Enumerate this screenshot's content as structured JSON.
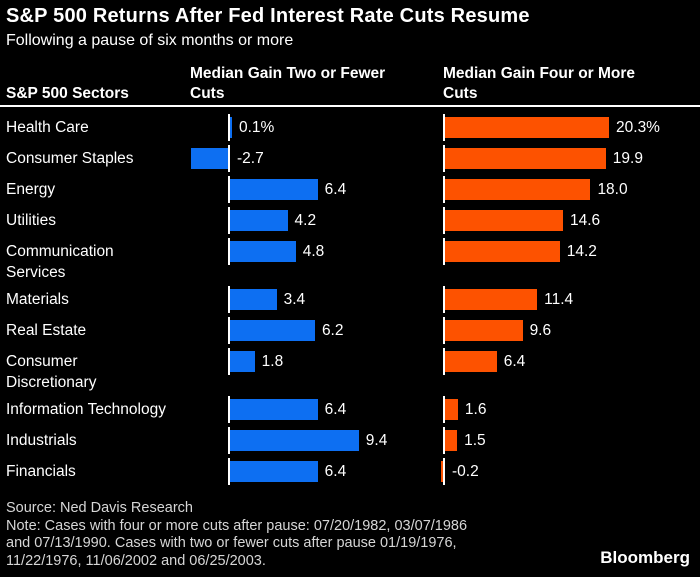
{
  "colors": {
    "background": "#000000",
    "text": "#ffffff",
    "footer_text": "#d6d6d6",
    "blue": "#0d6ff2",
    "orange": "#fd5200",
    "axis_tick": "#ffffff"
  },
  "chart_data": {
    "type": "bar",
    "orientation": "horizontal",
    "title": "S&P 500 Returns After Fed Interest Rate Cuts Resume",
    "subtitle": "Following a pause of six months or more",
    "sector_column_header": "S&P 500 Sectors",
    "unit": "percent",
    "categories": [
      "Health Care",
      "Consumer Staples",
      "Energy",
      "Utilities",
      "Communication Services",
      "Materials",
      "Real Estate",
      "Consumer Discretionary",
      "Information Technology",
      "Industrials",
      "Financials"
    ],
    "categories_display": [
      [
        "Health Care"
      ],
      [
        "Consumer Staples"
      ],
      [
        "Energy"
      ],
      [
        "Utilities"
      ],
      [
        "Communication",
        "Services"
      ],
      [
        "Materials"
      ],
      [
        "Real Estate"
      ],
      [
        "Consumer",
        "Discretionary"
      ],
      [
        "Information Technology"
      ],
      [
        "Industrials"
      ],
      [
        "Financials"
      ]
    ],
    "series": [
      {
        "name": "Median Gain Two or Fewer Cuts",
        "color": "#0d6ff2",
        "values": [
          0.1,
          -2.7,
          6.4,
          4.2,
          4.8,
          3.4,
          6.2,
          1.8,
          6.4,
          9.4,
          6.4
        ],
        "value_labels": [
          "0.1%",
          "-2.7",
          "6.4",
          "4.2",
          "4.8",
          "3.4",
          "6.2",
          "1.8",
          "6.4",
          "9.4",
          "6.4"
        ]
      },
      {
        "name": "Median Gain Four or More Cuts",
        "color": "#fd5200",
        "values": [
          20.3,
          19.9,
          18.0,
          14.6,
          14.2,
          11.4,
          9.6,
          6.4,
          1.6,
          1.5,
          -0.2
        ],
        "value_labels": [
          "20.3%",
          "19.9",
          "18.0",
          "14.6",
          "14.2",
          "11.4",
          "9.6",
          "6.4",
          "1.6",
          "1.5",
          "-0.2"
        ]
      }
    ]
  },
  "footer": {
    "source": "Source: Ned Davis Research",
    "note_lines": [
      "Note: Cases with four or more cuts after pause: 07/20/1982, 03/07/1986",
      "and 07/13/1990. Cases with two or fewer cuts after pause 01/19/1976,",
      "11/22/1976, 11/06/2002 and 06/25/2003."
    ],
    "brand": "Bloomberg"
  }
}
